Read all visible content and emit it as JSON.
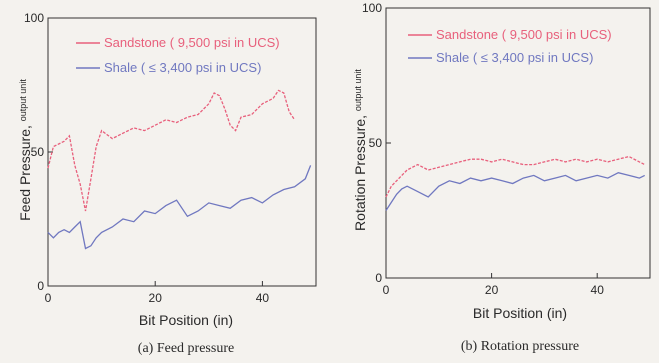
{
  "colors": {
    "sandstone": "#e8607c",
    "shale": "#7078c0",
    "axis": "#333333",
    "background": "#f4f2ee"
  },
  "chart_data": [
    {
      "type": "line",
      "caption": "(a) Feed pressure",
      "xlabel": "Bit Position (in)",
      "ylabel_main": "Feed Pressure",
      "ylabel_sub": "output unit",
      "xlim": [
        0,
        50
      ],
      "ylim": [
        0,
        100
      ],
      "xticks": [
        0,
        20,
        40
      ],
      "yticks": [
        0,
        50,
        100
      ],
      "ytick_labels": [
        "0",
        "50",
        "100"
      ],
      "grid": false,
      "legend_position": "top",
      "series": [
        {
          "name": "Sandstone ( 9,500 psi in UCS)",
          "color_key": "sandstone",
          "x": [
            0,
            1,
            2,
            3,
            4,
            5,
            6,
            7,
            8,
            9,
            10,
            12,
            14,
            16,
            18,
            20,
            22,
            24,
            26,
            28,
            30,
            31,
            32,
            33,
            34,
            35,
            36,
            38,
            40,
            42,
            43,
            44,
            45,
            46
          ],
          "values": [
            44,
            52,
            53,
            54,
            56,
            45,
            38,
            28,
            40,
            52,
            58,
            55,
            57,
            59,
            58,
            60,
            62,
            61,
            63,
            64,
            68,
            72,
            71,
            66,
            60,
            58,
            63,
            64,
            68,
            70,
            73,
            72,
            65,
            62
          ]
        },
        {
          "name": "Shale ( ≤ 3,400 psi in UCS)",
          "color_key": "shale",
          "x": [
            0,
            1,
            2,
            3,
            4,
            5,
            6,
            7,
            8,
            9,
            10,
            12,
            14,
            16,
            18,
            20,
            22,
            24,
            26,
            28,
            30,
            32,
            34,
            36,
            38,
            40,
            42,
            44,
            46,
            48,
            49
          ],
          "values": [
            20,
            18,
            20,
            21,
            20,
            22,
            24,
            14,
            15,
            18,
            20,
            22,
            25,
            24,
            28,
            27,
            30,
            32,
            26,
            28,
            31,
            30,
            29,
            32,
            33,
            31,
            34,
            36,
            37,
            40,
            45
          ]
        }
      ]
    },
    {
      "type": "line",
      "caption": "(b) Rotation pressure",
      "xlabel": "Bit Position (in)",
      "ylabel_main": "Rotation Pressure",
      "ylabel_sub": "output unit",
      "xlim": [
        0,
        50
      ],
      "ylim": [
        0,
        100
      ],
      "xticks": [
        0,
        20,
        40
      ],
      "yticks": [
        0,
        50,
        100
      ],
      "ytick_labels": [
        "0",
        "50",
        "100"
      ],
      "grid": false,
      "legend_position": "top",
      "series": [
        {
          "name": "Sandstone ( 9,500 psi in UCS)",
          "color_key": "sandstone",
          "x": [
            0,
            1,
            2,
            3,
            4,
            6,
            8,
            10,
            12,
            14,
            16,
            18,
            20,
            22,
            24,
            26,
            28,
            30,
            32,
            34,
            36,
            38,
            40,
            42,
            44,
            46,
            48,
            49
          ],
          "values": [
            30,
            34,
            36,
            38,
            40,
            42,
            40,
            41,
            42,
            43,
            44,
            44,
            43,
            44,
            43,
            42,
            42,
            43,
            44,
            43,
            44,
            43,
            44,
            43,
            44,
            45,
            43,
            42
          ]
        },
        {
          "name": "Shale ( ≤ 3,400 psi in UCS)",
          "color_key": "shale",
          "x": [
            0,
            1,
            2,
            3,
            4,
            6,
            8,
            10,
            12,
            14,
            16,
            18,
            20,
            22,
            24,
            26,
            28,
            30,
            32,
            34,
            36,
            38,
            40,
            42,
            44,
            46,
            48,
            49
          ],
          "values": [
            25,
            28,
            31,
            33,
            34,
            32,
            30,
            34,
            36,
            35,
            37,
            36,
            37,
            36,
            35,
            37,
            38,
            36,
            37,
            38,
            36,
            37,
            38,
            37,
            39,
            38,
            37,
            38
          ]
        }
      ]
    }
  ]
}
